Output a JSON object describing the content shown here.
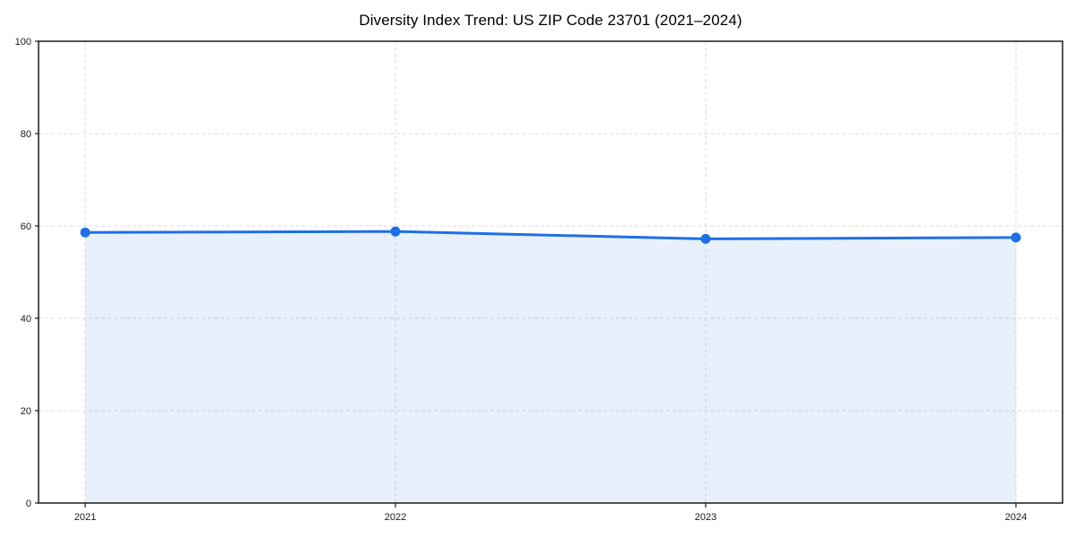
{
  "page": {
    "background_color": "#ffffff"
  },
  "chart_data": {
    "type": "area",
    "title": "Diversity Index Trend: US ZIP Code 23701 (2021–2024)",
    "categories": [
      "2021",
      "2022",
      "2023",
      "2024"
    ],
    "series": [
      {
        "name": "Diversity Index",
        "values": [
          58.6,
          58.8,
          57.2,
          57.5
        ]
      }
    ],
    "xlabel": "",
    "ylabel": "",
    "ylim": [
      0,
      100
    ],
    "yticks": [
      0,
      20,
      40,
      60,
      80,
      100
    ],
    "grid": true,
    "grid_style": "dashed",
    "legend_position": "none",
    "line_color": "#1f6fe6",
    "fill_color": "#1f6fe6",
    "fill_opacity": 0.1,
    "grid_color": "#dcdcdc",
    "axis_color": "#1a1a1a",
    "tick_label_color": "#1a1a1a",
    "title_color": "#000000",
    "marker_radius": 5.5,
    "line_width": 3
  }
}
